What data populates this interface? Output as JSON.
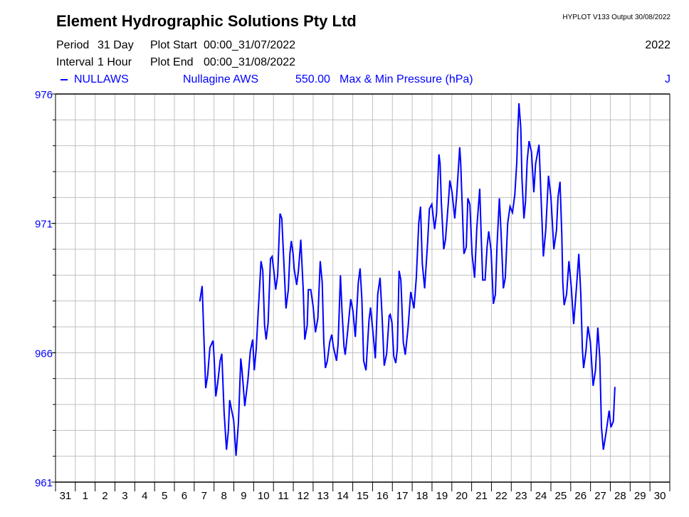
{
  "header": {
    "title": "Element Hydrographic Solutions Pty Ltd",
    "version": "HYPLOT V133  Output 30/08/2022",
    "year": "2022",
    "period_label": "Period",
    "period_value": "31 Day",
    "interval_label": "Interval",
    "interval_value": "1 Hour",
    "plot_start_label": "Plot Start",
    "plot_start_value": "00:00_31/07/2022",
    "plot_end_label": "Plot End",
    "plot_end_value": "00:00_31/08/2022"
  },
  "legend": {
    "site_code": "NULLAWS",
    "site_name": "Nullagine AWS",
    "variable_code": "550.00",
    "variable_name": "Max & Min Pressure (hPa)",
    "flag": "J"
  },
  "colors": {
    "series": "#0000ff",
    "grid": "#c0c0c0",
    "axis": "#000000"
  },
  "chart_data": {
    "type": "line",
    "title": "Element Hydrographic Solutions Pty Ltd",
    "xlabel": "",
    "ylabel": "Max & Min Pressure (hPa)",
    "ylim": [
      961,
      976
    ],
    "xlim": [
      0,
      31
    ],
    "x_unit": "days since 00:00 31/07/2022",
    "grid": true,
    "y_ticks": [
      "976",
      "971",
      "966",
      "961"
    ],
    "y_tick_values": [
      976,
      971,
      966,
      961
    ],
    "x_tick_labels": [
      "31",
      "1",
      "2",
      "3",
      "4",
      "5",
      "6",
      "7",
      "8",
      "9",
      "10",
      "11",
      "12",
      "13",
      "14",
      "15",
      "16",
      "17",
      "18",
      "19",
      "20",
      "21",
      "22",
      "23",
      "24",
      "25",
      "26",
      "27",
      "28",
      "29",
      "30"
    ],
    "series": [
      {
        "name": "NULLAWS",
        "x": [
          7.28,
          7.4,
          7.47,
          7.52,
          7.58,
          7.68,
          7.79,
          7.95,
          8.0,
          8.09,
          8.19,
          8.31,
          8.39,
          8.51,
          8.63,
          8.72,
          8.79,
          8.87,
          8.99,
          9.11,
          9.23,
          9.35,
          9.41,
          9.47,
          9.55,
          9.71,
          9.83,
          9.95,
          10.03,
          10.13,
          10.23,
          10.31,
          10.37,
          10.46,
          10.55,
          10.63,
          10.73,
          10.85,
          10.93,
          11.03,
          11.11,
          11.21,
          11.33,
          11.42,
          11.5,
          11.63,
          11.75,
          11.83,
          11.9,
          11.99,
          12.04,
          12.17,
          12.26,
          12.38,
          12.5,
          12.58,
          12.7,
          12.76,
          12.88,
          13.0,
          13.12,
          13.24,
          13.36,
          13.46,
          13.54,
          13.62,
          13.72,
          13.84,
          13.94,
          14.02,
          14.18,
          14.26,
          14.38,
          14.46,
          14.56,
          14.62,
          14.74,
          14.9,
          15.01,
          15.13,
          15.28,
          15.37,
          15.46,
          15.55,
          15.67,
          15.82,
          15.9,
          16.02,
          16.14,
          16.26,
          16.38,
          16.48,
          16.59,
          16.71,
          16.84,
          16.89,
          16.98,
          17.07,
          17.17,
          17.25,
          17.34,
          17.43,
          17.55,
          17.65,
          17.79,
          17.93,
          18.09,
          18.21,
          18.33,
          18.42,
          18.51,
          18.63,
          18.78,
          18.87,
          18.99,
          19.13,
          19.23,
          19.35,
          19.41,
          19.47,
          19.59,
          19.68,
          19.83,
          19.9,
          20.01,
          20.15,
          20.25,
          20.4,
          20.45,
          20.52,
          20.61,
          20.73,
          20.81,
          20.91,
          21.02,
          21.15,
          21.26,
          21.41,
          21.48,
          21.56,
          21.68,
          21.78,
          21.86,
          21.98,
          22.1,
          22.2,
          22.28,
          22.4,
          22.49,
          22.6,
          22.7,
          22.82,
          22.94,
          23.06,
          23.18,
          23.28,
          23.32,
          23.39,
          23.48,
          23.54,
          23.64,
          23.72,
          23.8,
          23.9,
          24.02,
          24.14,
          24.23,
          24.4,
          24.5,
          24.62,
          24.74,
          24.88,
          25.0,
          25.15,
          25.28,
          25.36,
          25.46,
          25.55,
          25.6,
          25.67,
          25.79,
          25.91,
          26.03,
          26.15,
          26.29,
          26.41,
          26.51,
          26.59,
          26.65,
          26.77,
          26.87,
          26.99,
          27.13,
          27.25,
          27.37,
          27.47,
          27.55,
          27.65,
          27.79,
          27.94,
          28.03,
          28.15,
          28.23
        ],
        "y": [
          967.98,
          968.58,
          966.97,
          965.96,
          964.63,
          965.14,
          966.2,
          966.47,
          965.87,
          964.31,
          964.86,
          965.69,
          965.96,
          963.67,
          962.25,
          962.98,
          964.17,
          963.85,
          963.39,
          962.02,
          963.3,
          965.78,
          965.32,
          964.77,
          963.94,
          964.95,
          966.06,
          966.51,
          965.32,
          966.15,
          967.61,
          968.67,
          969.54,
          969.17,
          967.06,
          966.51,
          967.16,
          969.63,
          969.72,
          969.08,
          968.44,
          968.99,
          971.38,
          971.19,
          969.91,
          967.71,
          968.44,
          969.82,
          970.32,
          969.82,
          969.26,
          968.62,
          969.17,
          970.37,
          968.44,
          966.51,
          967.06,
          968.44,
          968.44,
          967.8,
          966.79,
          967.34,
          969.54,
          968.71,
          966.42,
          965.41,
          965.69,
          966.42,
          966.7,
          966.24,
          965.69,
          966.33,
          968.99,
          967.61,
          966.24,
          965.92,
          966.79,
          968.07,
          967.61,
          966.61,
          968.71,
          969.26,
          968.07,
          965.69,
          965.32,
          967.25,
          967.75,
          966.79,
          965.78,
          968.26,
          968.9,
          967.43,
          965.5,
          965.96,
          967.43,
          967.48,
          967.16,
          965.87,
          965.6,
          966.15,
          969.17,
          968.81,
          966.42,
          965.92,
          966.97,
          968.35,
          967.71,
          968.9,
          971.0,
          971.65,
          969.45,
          968.49,
          970.27,
          971.56,
          971.74,
          970.78,
          971.38,
          973.67,
          973.3,
          971.84,
          970.0,
          970.37,
          971.84,
          972.66,
          972.2,
          971.19,
          972.11,
          973.94,
          973.3,
          971.74,
          969.82,
          970.09,
          971.97,
          971.74,
          969.82,
          968.9,
          970.83,
          972.34,
          970.55,
          968.81,
          968.81,
          970.09,
          970.69,
          969.95,
          967.89,
          968.26,
          970.09,
          971.97,
          970.55,
          968.49,
          968.9,
          971.01,
          971.65,
          971.42,
          972.11,
          973.39,
          974.4,
          975.64,
          974.68,
          972.75,
          971.19,
          971.84,
          973.39,
          974.18,
          973.76,
          972.2,
          973.3,
          974.04,
          972.11,
          969.72,
          970.73,
          972.84,
          972.02,
          970.0,
          970.73,
          972.02,
          972.61,
          970.55,
          968.71,
          967.84,
          968.26,
          969.54,
          968.53,
          967.11,
          968.53,
          969.82,
          968.26,
          966.15,
          965.41,
          966.06,
          967.02,
          966.42,
          964.72,
          965.32,
          966.97,
          965.78,
          963.12,
          962.25,
          962.93,
          963.76,
          963.12,
          963.35,
          964.68
        ]
      }
    ]
  }
}
